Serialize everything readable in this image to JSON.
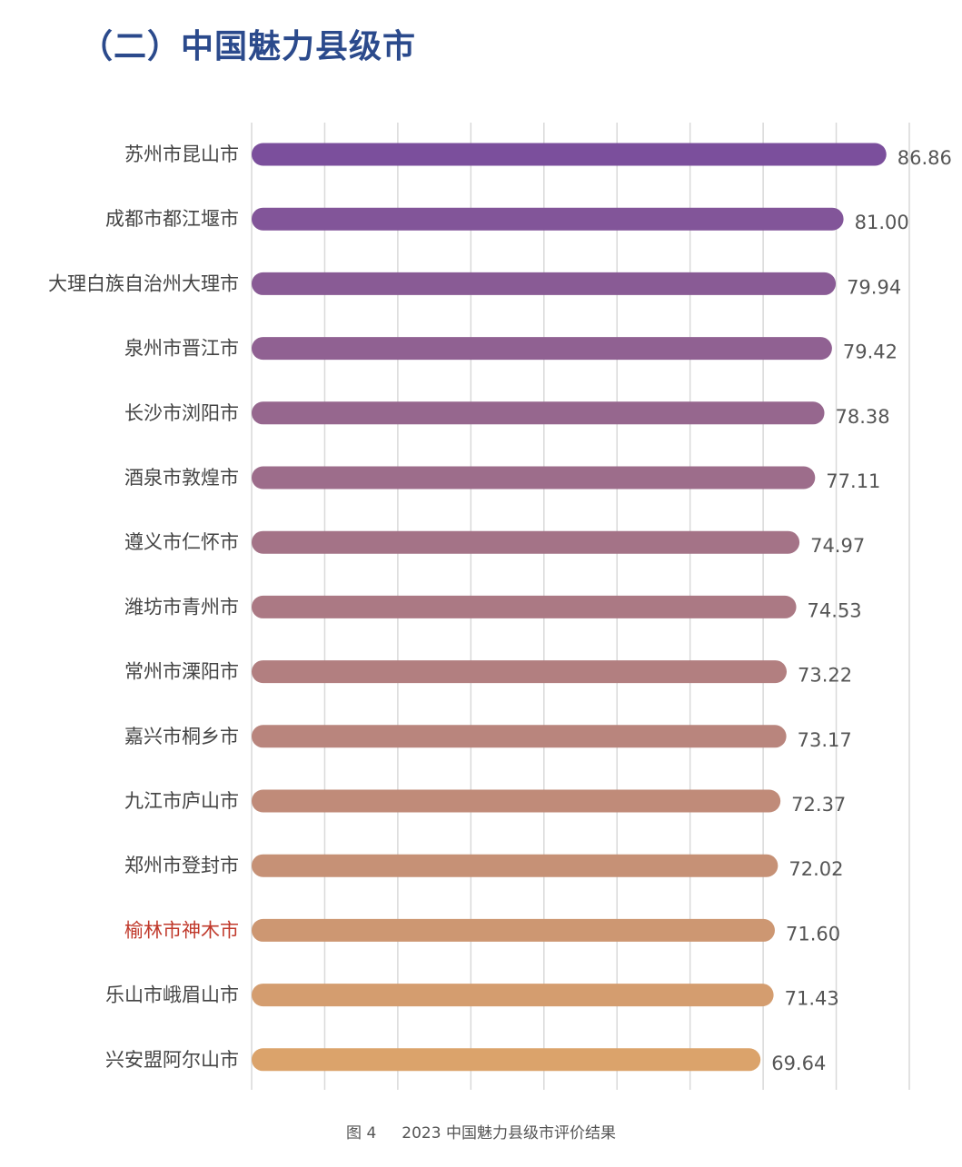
{
  "heading": "（二）中国魅力县级市",
  "caption": {
    "figure": "图 4",
    "title": "2023 中国魅力县级市评价结果"
  },
  "colors": {
    "heading": "#2b4a8c",
    "highlight_label": "#c0392b",
    "bar_top": "#7b4f9c",
    "bar_bottom": "#dba36b"
  },
  "chart_data": {
    "type": "bar",
    "orientation": "horizontal",
    "title": "2023 中国魅力县级市评价结果",
    "categories": [
      "苏州市昆山市",
      "成都市都江堰市",
      "大理白族自治州大理市",
      "泉州市晋江市",
      "长沙市浏阳市",
      "酒泉市敦煌市",
      "遵义市仁怀市",
      "潍坊市青州市",
      "常州市溧阳市",
      "嘉兴市桐乡市",
      "九江市庐山市",
      "郑州市登封市",
      "榆林市神木市",
      "乐山市峨眉山市",
      "兴安盟阿尔山市"
    ],
    "values": [
      86.86,
      81.0,
      79.94,
      79.42,
      78.38,
      77.11,
      74.97,
      74.53,
      73.22,
      73.17,
      72.37,
      72.02,
      71.6,
      71.43,
      69.64
    ],
    "value_labels": [
      "86.86",
      "81.00",
      "79.94",
      "79.42",
      "78.38",
      "77.11",
      "74.97",
      "74.53",
      "73.22",
      "73.17",
      "72.37",
      "72.02",
      "71.60",
      "71.43",
      "69.64"
    ],
    "highlight_category": "榆林市神木市",
    "xlim": [
      0,
      90
    ],
    "gridlines": "vertical",
    "axis_tick_labels_shown": false
  }
}
